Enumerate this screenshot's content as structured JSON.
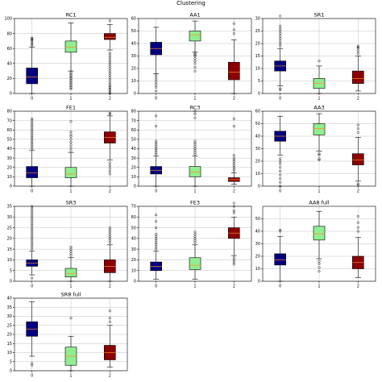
{
  "figure": {
    "title": "Clustering"
  },
  "chart_data": [
    {
      "type": "box",
      "title": "RC1",
      "categories": [
        "0",
        "1",
        "2"
      ],
      "ylim": [
        0,
        100
      ],
      "yticks": [
        0,
        20,
        40,
        60,
        80,
        100
      ],
      "grid": true,
      "boxes": [
        {
          "whislo": 0,
          "q1": 13,
          "med": 22,
          "q3": 34,
          "whishi": 62,
          "fliers": [
            64,
            66,
            68,
            70,
            72,
            73,
            74
          ]
        },
        {
          "whislo": 30,
          "q1": 55,
          "med": 62,
          "q3": 70,
          "whishi": 94,
          "fliers": [
            6,
            8,
            10,
            12,
            14,
            16,
            18,
            20,
            22,
            24,
            26,
            28
          ]
        },
        {
          "whislo": 58,
          "q1": 72,
          "med": 75,
          "q3": 80,
          "whishi": 92,
          "fliers": [
            0,
            2,
            4,
            6,
            8,
            10,
            12,
            15,
            18,
            21,
            24,
            27,
            30,
            33,
            36,
            39,
            42,
            45,
            48,
            51,
            54,
            97
          ]
        }
      ]
    },
    {
      "type": "box",
      "title": "AA1",
      "categories": [
        "0",
        "1",
        "2"
      ],
      "ylim": [
        0,
        60
      ],
      "yticks": [
        0,
        10,
        20,
        30,
        40,
        50,
        60
      ],
      "grid": true,
      "boxes": [
        {
          "whislo": 16,
          "q1": 31,
          "med": 36,
          "q3": 41,
          "whishi": 53,
          "fliers": [
            2,
            5,
            7,
            9,
            11,
            13,
            15
          ]
        },
        {
          "whislo": 33,
          "q1": 42,
          "med": 47,
          "q3": 50,
          "whishi": 58,
          "fliers": [
            18,
            21,
            24,
            26,
            28,
            30,
            31,
            32
          ]
        },
        {
          "whislo": 0,
          "q1": 11,
          "med": 17,
          "q3": 25,
          "whishi": 43,
          "fliers": [
            48,
            51,
            56
          ]
        }
      ]
    },
    {
      "type": "box",
      "title": "SR1",
      "categories": [
        "0",
        "1",
        "2"
      ],
      "ylim": [
        0,
        30
      ],
      "yticks": [
        0,
        5,
        10,
        15,
        20,
        25,
        30
      ],
      "grid": true,
      "boxes": [
        {
          "whislo": 3,
          "q1": 9,
          "med": 11,
          "q3": 13,
          "whishi": 18,
          "fliers": [
            1.5,
            2,
            19,
            20,
            21,
            22,
            23,
            24,
            25,
            26,
            27,
            31
          ]
        },
        {
          "whislo": 0,
          "q1": 2,
          "med": 4,
          "q3": 6,
          "whishi": 11,
          "fliers": [
            13
          ]
        },
        {
          "whislo": 1,
          "q1": 4,
          "med": 6,
          "q3": 9,
          "whishi": 15,
          "fliers": [
            16,
            17,
            18,
            18.5,
            19
          ]
        }
      ]
    },
    {
      "type": "box",
      "title": "FE1",
      "categories": [
        "0",
        "1",
        "2"
      ],
      "ylim": [
        0,
        80
      ],
      "yticks": [
        0,
        10,
        20,
        30,
        40,
        50,
        60,
        70,
        80
      ],
      "grid": true,
      "boxes": [
        {
          "whislo": 0,
          "q1": 9,
          "med": 14,
          "q3": 21,
          "whishi": 38,
          "fliers": [
            40,
            42,
            44,
            46,
            48,
            50,
            52,
            54,
            56,
            58,
            60,
            62,
            64,
            66,
            68,
            70,
            72
          ]
        },
        {
          "whislo": 0,
          "q1": 9,
          "med": 13,
          "q3": 20,
          "whishi": 36,
          "fliers": [
            38,
            41,
            44,
            47,
            50,
            53,
            55,
            58,
            69
          ]
        },
        {
          "whislo": 28,
          "q1": 46,
          "med": 52,
          "q3": 58,
          "whishi": 75,
          "fliers": [
            13,
            16,
            19,
            22,
            25,
            77,
            78
          ]
        }
      ]
    },
    {
      "type": "box",
      "title": "RC3",
      "categories": [
        "0",
        "1",
        "2"
      ],
      "ylim": [
        0,
        80
      ],
      "yticks": [
        0,
        10,
        20,
        30,
        40,
        50,
        60,
        70,
        80
      ],
      "grid": true,
      "boxes": [
        {
          "whislo": 0,
          "q1": 13,
          "med": 17,
          "q3": 21,
          "whishi": 32,
          "fliers": [
            34,
            36,
            38,
            40,
            42,
            44,
            46,
            48,
            64,
            75
          ]
        },
        {
          "whislo": 0,
          "q1": 10,
          "med": 15,
          "q3": 21,
          "whishi": 32,
          "fliers": [
            34,
            36,
            38,
            40,
            42,
            44,
            46,
            48,
            73,
            77,
            80
          ]
        },
        {
          "whislo": 2,
          "q1": 5,
          "med": 7,
          "q3": 9,
          "whishi": 14,
          "fliers": [
            16,
            18,
            20,
            22,
            24,
            26,
            28,
            30,
            33,
            64,
            72
          ]
        }
      ]
    },
    {
      "type": "box",
      "title": "AA3",
      "categories": [
        "0",
        "1",
        "2"
      ],
      "ylim": [
        0,
        60
      ],
      "yticks": [
        0,
        10,
        20,
        30,
        40,
        50,
        60
      ],
      "grid": true,
      "boxes": [
        {
          "whislo": 25,
          "q1": 36,
          "med": 40,
          "q3": 44,
          "whishi": 56,
          "fliers": [
            0,
            3,
            6,
            9,
            12,
            15,
            18,
            20,
            22
          ]
        },
        {
          "whislo": 28,
          "q1": 41,
          "med": 46,
          "q3": 50,
          "whishi": 58,
          "fliers": [
            21,
            22,
            25,
            26
          ]
        },
        {
          "whislo": 4,
          "q1": 17,
          "med": 21,
          "q3": 26,
          "whishi": 39,
          "fliers": [
            1,
            2,
            43,
            46,
            49
          ]
        }
      ]
    },
    {
      "type": "box",
      "title": "SR3",
      "categories": [
        "0",
        "1",
        "2"
      ],
      "ylim": [
        0,
        35
      ],
      "yticks": [
        0,
        5,
        10,
        15,
        20,
        25,
        30,
        35
      ],
      "grid": true,
      "boxes": [
        {
          "whislo": 3,
          "q1": 7,
          "med": 8.5,
          "q3": 10,
          "whishi": 14,
          "fliers": [
            1.5,
            15,
            16,
            17,
            18,
            19,
            20,
            21,
            22,
            23,
            24,
            25,
            26,
            27,
            28,
            29,
            30,
            31,
            32,
            33,
            34,
            35
          ]
        },
        {
          "whislo": 0,
          "q1": 2,
          "med": 3.5,
          "q3": 6,
          "whishi": 11,
          "fliers": [
            12,
            13,
            14,
            15,
            16
          ]
        },
        {
          "whislo": 0,
          "q1": 4,
          "med": 7,
          "q3": 10,
          "whishi": 17,
          "fliers": [
            18,
            19,
            20,
            21,
            22,
            23,
            24,
            25
          ]
        }
      ]
    },
    {
      "type": "box",
      "title": "FE3",
      "categories": [
        "0",
        "1",
        "2"
      ],
      "ylim": [
        0,
        70
      ],
      "yticks": [
        0,
        10,
        20,
        30,
        40,
        50,
        60,
        70
      ],
      "grid": true,
      "boxes": [
        {
          "whislo": 2,
          "q1": 10,
          "med": 14,
          "q3": 18,
          "whishi": 28,
          "fliers": [
            30,
            32,
            34,
            36,
            38,
            40,
            42,
            44,
            50,
            56,
            62
          ]
        },
        {
          "whislo": 2,
          "q1": 11,
          "med": 15,
          "q3": 22,
          "whishi": 34,
          "fliers": [
            36,
            38,
            40,
            42,
            44,
            46
          ]
        },
        {
          "whislo": 24,
          "q1": 40,
          "med": 45,
          "q3": 50,
          "whishi": 60,
          "fliers": [
            16,
            18,
            20,
            22,
            64,
            66,
            70,
            73
          ]
        }
      ]
    },
    {
      "type": "box",
      "title": "AA8 full",
      "categories": [
        "0",
        "1",
        "2"
      ],
      "ylim": [
        0,
        60
      ],
      "yticks": [
        0,
        10,
        20,
        30,
        40,
        50
      ],
      "grid": true,
      "boxes": [
        {
          "whislo": 0,
          "q1": 13,
          "med": 17,
          "q3": 22,
          "whishi": 36,
          "fliers": [
            40,
            41
          ]
        },
        {
          "whislo": 18,
          "q1": 33,
          "med": 38,
          "q3": 44,
          "whishi": 56,
          "fliers": [
            8,
            11,
            14,
            16
          ]
        },
        {
          "whislo": 3,
          "q1": 10,
          "med": 15,
          "q3": 20,
          "whishi": 35,
          "fliers": [
            40,
            43,
            47,
            52
          ]
        }
      ]
    },
    {
      "type": "box",
      "title": "SR8 full",
      "categories": [
        "0",
        "1",
        "2"
      ],
      "ylim": [
        0,
        40
      ],
      "yticks": [
        0,
        5,
        10,
        15,
        20,
        25,
        30,
        35,
        40
      ],
      "grid": true,
      "boxes": [
        {
          "whislo": 8,
          "q1": 19,
          "med": 23,
          "q3": 27,
          "whishi": 38,
          "fliers": [
            3,
            4
          ]
        },
        {
          "whislo": 0,
          "q1": 3,
          "med": 8,
          "q3": 13,
          "whishi": 19,
          "fliers": [
            29
          ]
        },
        {
          "whislo": 2,
          "q1": 6,
          "med": 10,
          "q3": 14,
          "whishi": 25,
          "fliers": [
            27,
            29,
            33
          ]
        }
      ]
    }
  ],
  "colors": {
    "box_0": "#000080",
    "box_1": "#90ee90",
    "box_2": "#8b0000",
    "median": "#ff8c1a"
  }
}
